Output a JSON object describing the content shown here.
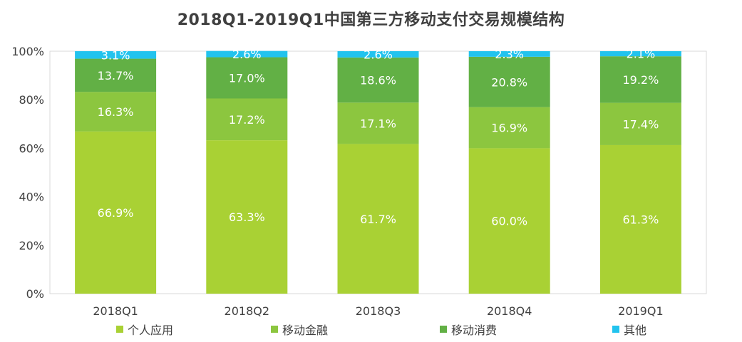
{
  "chart_data": {
    "type": "bar",
    "stacked": true,
    "title": "2018Q1-2019Q1中国第三方移动支付交易规模结构",
    "categories": [
      "2018Q1",
      "2018Q2",
      "2018Q3",
      "2018Q4",
      "2019Q1"
    ],
    "series": [
      {
        "name": "个人应用",
        "color": "#a9d134",
        "values": [
          66.9,
          63.3,
          61.7,
          60.0,
          61.3
        ]
      },
      {
        "name": "移动金融",
        "color": "#8cc63f",
        "values": [
          16.3,
          17.2,
          17.1,
          16.9,
          17.4
        ]
      },
      {
        "name": "移动消费",
        "color": "#62b045",
        "values": [
          13.7,
          17.0,
          18.6,
          20.8,
          19.2
        ]
      },
      {
        "name": "其他",
        "color": "#22c3ee",
        "values": [
          3.1,
          2.6,
          2.6,
          2.3,
          2.1
        ]
      }
    ],
    "y_ticks": [
      "0%",
      "20%",
      "40%",
      "60%",
      "80%",
      "100%"
    ],
    "ylim": [
      0,
      100
    ],
    "grid": false,
    "legend_position": "bottom"
  }
}
